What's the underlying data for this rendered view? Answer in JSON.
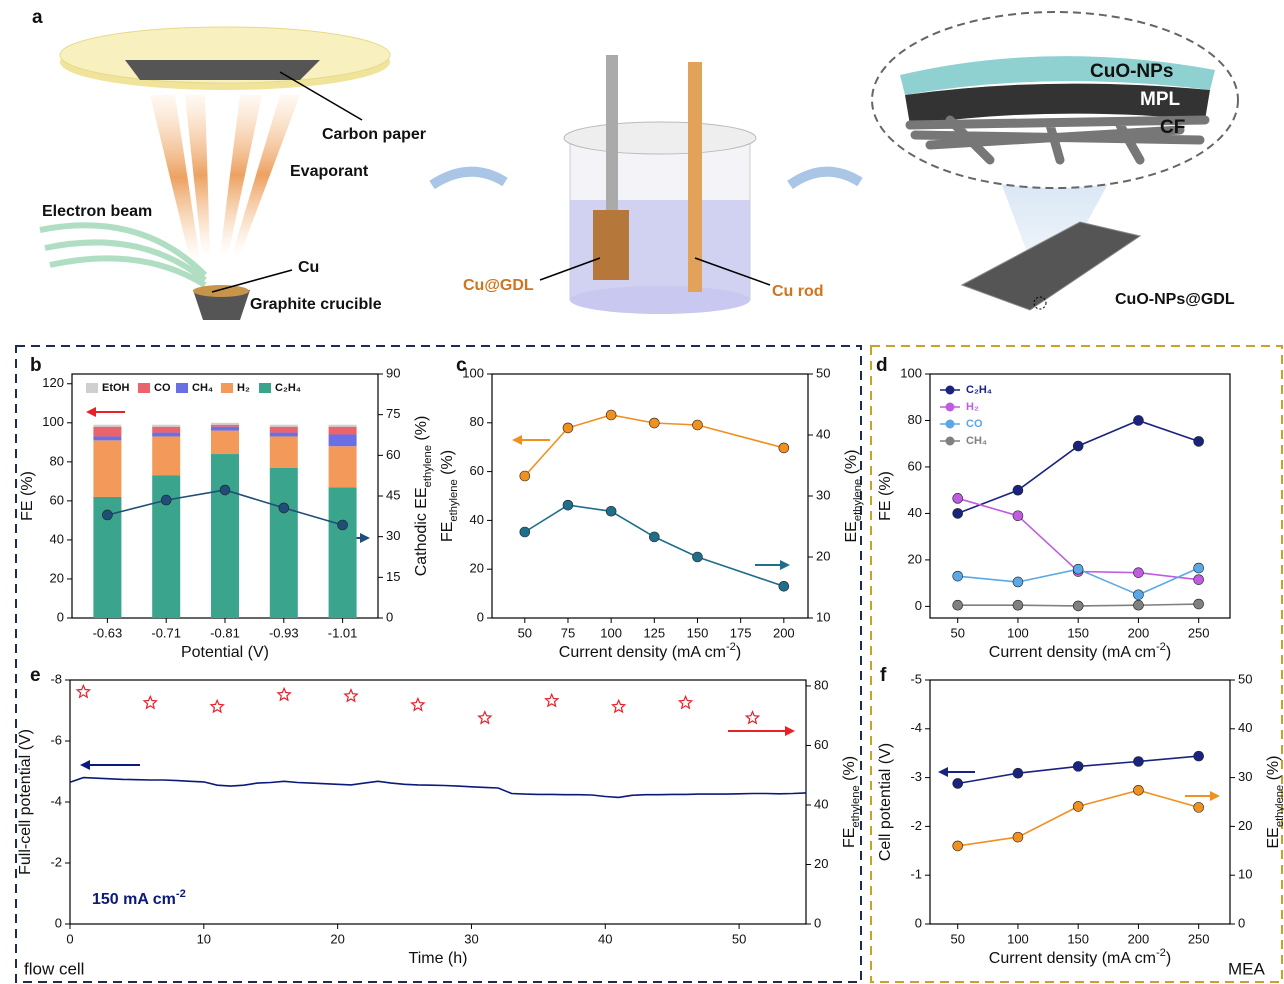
{
  "panel_labels": [
    "a",
    "b",
    "c",
    "d",
    "e",
    "f"
  ],
  "schematic": {
    "carbon_paper": "Carbon paper",
    "evaporant": "Evaporant",
    "electron_beam": "Electron beam",
    "cu": "Cu",
    "crucible": "Graphite crucible",
    "cu_gdl": "Cu@GDL",
    "cu_rod": "Cu rod",
    "cuo_nps": "CuO-NPs",
    "mpl": "MPL",
    "cf": "CF",
    "product": "CuO-NPs@GDL"
  },
  "cell_labels": {
    "flow_cell": "flow cell",
    "mea": "MEA"
  },
  "chart_data": [
    {
      "type": "bar",
      "categories": [
        "-0.63",
        "-0.71",
        "-0.81",
        "-0.93",
        "-1.01"
      ],
      "x_label": "Potential (V)",
      "y_label": "FE (%)",
      "y2_label": [
        "Cathodic EE",
        "ethylene",
        " (%)"
      ],
      "ylim": [
        0,
        125
      ],
      "yticks": [
        0,
        20,
        40,
        60,
        80,
        100,
        120
      ],
      "y2lim": [
        0,
        90
      ],
      "y2ticks": [
        0,
        15,
        30,
        45,
        60,
        75,
        90
      ],
      "legend": "top",
      "series": [
        {
          "name": "C₂H₄",
          "color": "#3aa58c",
          "values": [
            62,
            73,
            84,
            77,
            67
          ]
        },
        {
          "name": "H₂",
          "color": "#f39a5b",
          "values": [
            29,
            20,
            12,
            16,
            21
          ]
        },
        {
          "name": "CH₄",
          "color": "#6b6fe6",
          "values": [
            2,
            2,
            2,
            2,
            6
          ]
        },
        {
          "name": "CO",
          "color": "#e9646c",
          "values": [
            5,
            3,
            1,
            3,
            4
          ]
        },
        {
          "name": "EtOH",
          "color": "#cfcfcf",
          "values": [
            1,
            1,
            1,
            1,
            1
          ]
        },
        {
          "type": "line",
          "axis": "y2",
          "color": "#1f4e79",
          "values": [
            38,
            43.5,
            47.2,
            40.6,
            34.3
          ]
        }
      ]
    },
    {
      "type": "line",
      "x": [
        50,
        75,
        100,
        125,
        150,
        200
      ],
      "x_label": [
        "Current density (mA cm",
        "-2",
        ")"
      ],
      "y_label": [
        "FE",
        "ethylene",
        " (%)"
      ],
      "y2_label": [
        "EE",
        "ethylene",
        " (%)"
      ],
      "xlim": [
        31,
        214
      ],
      "xticks": [
        50,
        75,
        100,
        125,
        150,
        175,
        200
      ],
      "ylim": [
        0,
        100
      ],
      "yticks": [
        0,
        20,
        40,
        60,
        80,
        100
      ],
      "y2lim": [
        10,
        50
      ],
      "y2ticks": [
        10,
        20,
        30,
        40,
        50
      ],
      "series": [
        {
          "color": "#f0901e",
          "values": [
            58.2,
            77.9,
            83.2,
            79.9,
            79.1,
            69.7
          ]
        },
        {
          "axis": "y2",
          "color": "#1f6e8c",
          "values": [
            24.1,
            28.5,
            27.5,
            23.3,
            20,
            15.2
          ]
        }
      ]
    },
    {
      "type": "line",
      "x": [
        50,
        100,
        150,
        200,
        250
      ],
      "x_label": [
        "Current density (mA cm",
        "-2",
        ")"
      ],
      "y_label": "FE (%)",
      "xlim": [
        27,
        276
      ],
      "xticks": [
        50,
        100,
        150,
        200,
        250
      ],
      "ylim": [
        -5,
        100
      ],
      "yticks": [
        0,
        20,
        40,
        60,
        80,
        100
      ],
      "legend": "upper left",
      "series": [
        {
          "name": "C₂H₄",
          "color": "#1a237e",
          "values": [
            40,
            50,
            69,
            80,
            71
          ]
        },
        {
          "name": "H₂",
          "color": "#c05ce0",
          "values": [
            46.5,
            39,
            15,
            14.5,
            11.5
          ]
        },
        {
          "name": "CO",
          "color": "#5aa8e6",
          "values": [
            13,
            10.5,
            16,
            5,
            16.5
          ]
        },
        {
          "name": "CH₄",
          "color": "#808080",
          "values": [
            0.5,
            0.5,
            0.2,
            0.5,
            1
          ]
        }
      ]
    },
    {
      "type": "line",
      "x_label": "Time (h)",
      "y_label": "Full-cell potential (V)",
      "y2_label": [
        "FE",
        "ethylene",
        " (%)"
      ],
      "annotation": [
        "150 mA cm",
        "-2"
      ],
      "xlim": [
        0,
        55
      ],
      "xticks": [
        0,
        10,
        20,
        30,
        40,
        50
      ],
      "ylim": [
        0,
        -8
      ],
      "yticks": [
        0,
        -2,
        -4,
        -6,
        -8
      ],
      "y2lim": [
        0,
        82
      ],
      "y2ticks": [
        0,
        20,
        40,
        60,
        80
      ],
      "series": [
        {
          "color": "#0a1a7a",
          "marker": "none",
          "x": [
            0,
            1,
            2,
            3,
            4,
            5,
            6,
            7,
            8,
            9,
            10,
            11,
            12,
            13,
            14,
            15,
            16,
            17,
            18,
            19,
            20,
            21,
            22,
            23,
            24,
            25,
            26,
            27,
            28,
            29,
            30,
            31,
            32,
            33,
            34,
            35,
            36,
            37,
            38,
            39,
            40,
            41,
            42,
            43,
            44,
            45,
            46,
            47,
            48,
            49,
            50,
            51,
            52,
            53,
            54,
            55
          ],
          "values": [
            -4.65,
            -4.8,
            -4.78,
            -4.76,
            -4.74,
            -4.73,
            -4.72,
            -4.72,
            -4.7,
            -4.68,
            -4.66,
            -4.55,
            -4.52,
            -4.55,
            -4.62,
            -4.64,
            -4.68,
            -4.64,
            -4.62,
            -4.6,
            -4.58,
            -4.56,
            -4.62,
            -4.68,
            -4.62,
            -4.58,
            -4.56,
            -4.55,
            -4.54,
            -4.52,
            -4.5,
            -4.48,
            -4.46,
            -4.28,
            -4.26,
            -4.25,
            -4.25,
            -4.24,
            -4.24,
            -4.23,
            -4.18,
            -4.15,
            -4.22,
            -4.24,
            -4.24,
            -4.25,
            -4.25,
            -4.26,
            -4.26,
            -4.26,
            -4.27,
            -4.28,
            -4.28,
            -4.27,
            -4.28,
            -4.3
          ]
        },
        {
          "type": "scatter",
          "axis": "y2",
          "color": "#e8202a",
          "marker": "star",
          "x": [
            1,
            6,
            11,
            16,
            21,
            26,
            31,
            36,
            41,
            46,
            51
          ],
          "values": [
            78,
            74.3,
            73,
            77,
            76.6,
            73.6,
            69.2,
            75,
            73,
            74.3,
            69.2
          ]
        }
      ]
    },
    {
      "type": "line",
      "x": [
        50,
        100,
        150,
        200,
        250
      ],
      "x_label": [
        "Current density (mA cm",
        "-2",
        ")"
      ],
      "y_label": "Cell potential  (V)",
      "y2_label": [
        "EE",
        "ethylene",
        " (%)"
      ],
      "xlim": [
        27,
        276
      ],
      "xticks": [
        50,
        100,
        150,
        200,
        250
      ],
      "ylim": [
        0,
        -5
      ],
      "yticks": [
        0,
        -1,
        -2,
        -3,
        -4,
        -5
      ],
      "y2lim": [
        0,
        50
      ],
      "y2ticks": [
        0,
        10,
        20,
        30,
        40,
        50
      ],
      "series": [
        {
          "color": "#1a237e",
          "values": [
            -2.88,
            -3.09,
            -3.23,
            -3.33,
            -3.44
          ]
        },
        {
          "axis": "y2",
          "color": "#f0901e",
          "values": [
            16,
            17.8,
            24.1,
            27.4,
            23.9
          ]
        }
      ]
    }
  ]
}
